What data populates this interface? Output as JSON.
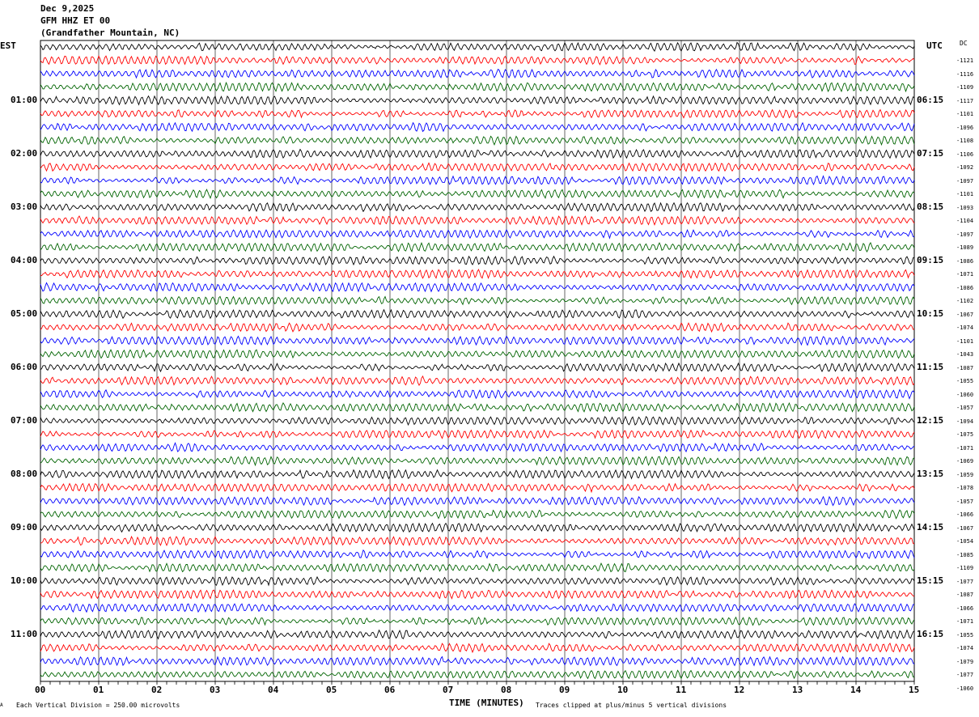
{
  "header": {
    "date": "Dec 9,2025",
    "station": "GFM HHZ ET 00",
    "location": "(Grandfather Mountain, NC)"
  },
  "left_axis_title": "EST",
  "right_axis_title": "UTC",
  "dc_title": "DC",
  "footer": {
    "scale_note": "Each Vertical Division =  250.00 microvolts",
    "xlabel": "TIME (MINUTES)",
    "clip_note": "Traces clipped at plus/minus 5 vertical divisions",
    "corner_mark": "A"
  },
  "chart_data": {
    "type": "line",
    "subtype": "helicorder",
    "xlabel": "TIME (MINUTES)",
    "xlim": [
      0,
      15
    ],
    "x_ticks": [
      "00",
      "01",
      "02",
      "03",
      "04",
      "05",
      "06",
      "07",
      "08",
      "09",
      "10",
      "11",
      "12",
      "13",
      "14",
      "15"
    ],
    "grid": true,
    "trace_colors": [
      "#000000",
      "#ff0000",
      "#0000ff",
      "#006400"
    ],
    "left_hour_labels": [
      "01:00",
      "02:00",
      "03:00",
      "04:00",
      "05:00",
      "06:00",
      "07:00",
      "08:00",
      "09:00",
      "10:00",
      "11:00"
    ],
    "right_hour_labels": [
      "06:15",
      "07:15",
      "08:15",
      "09:15",
      "10:15",
      "11:15",
      "12:15",
      "13:15",
      "14:15",
      "15:15",
      "16:15"
    ],
    "dc_offsets": [
      -1121,
      -1116,
      -1109,
      -1117,
      -1101,
      -1096,
      -1108,
      -1106,
      -1092,
      -1097,
      -1101,
      -1093,
      -1104,
      -1097,
      -1089,
      -1086,
      -1071,
      -1086,
      -1102,
      -1067,
      -1074,
      -1101,
      -1043,
      -1087,
      -1055,
      -1060,
      -1057,
      -1094,
      -1075,
      -1071,
      -1069,
      -1059,
      -1078,
      -1057,
      -1066,
      -1067,
      -1054,
      -1085,
      -1109,
      -1077,
      -1087,
      -1066,
      -1071,
      -1055,
      -1074,
      -1079,
      -1077,
      -1060
    ]
  }
}
